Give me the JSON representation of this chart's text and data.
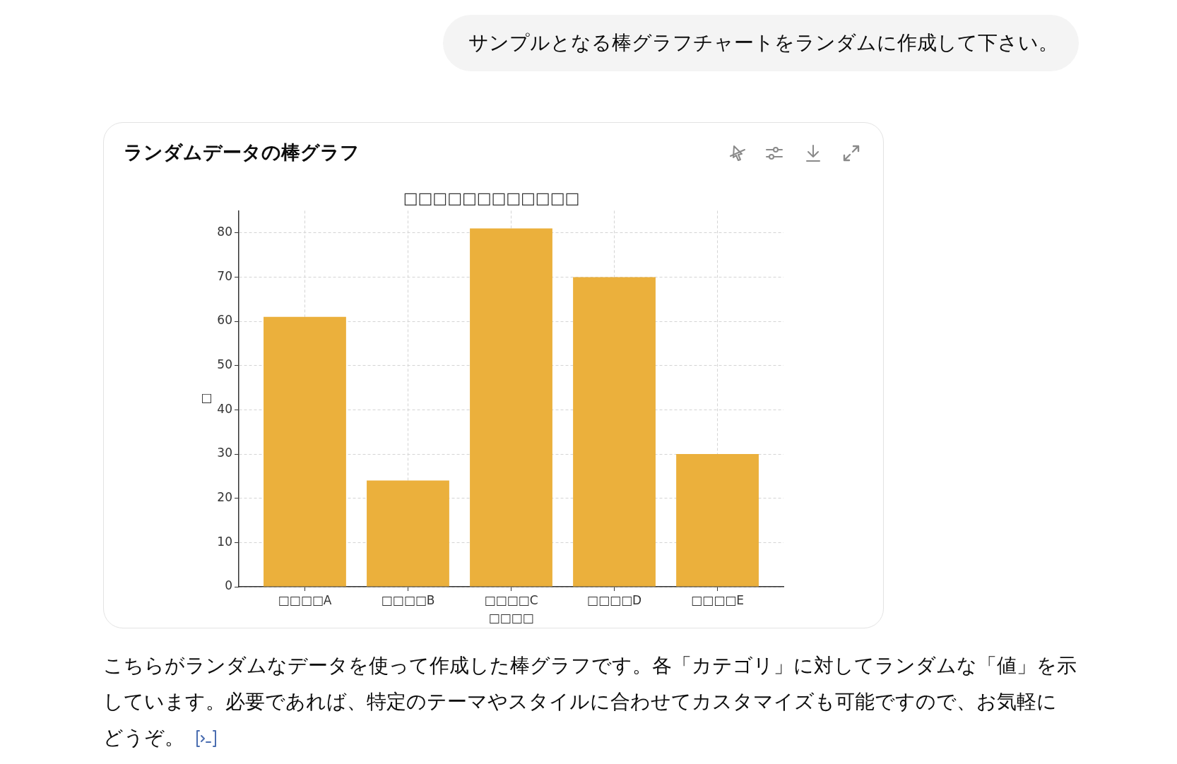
{
  "chart_data": {
    "type": "bar",
    "title": "ランダムデータの棒グラフ",
    "subtitle": "□□□□□□□□□□□□",
    "xlabel": "□□□□",
    "ylabel": "□",
    "categories": [
      "□□□□A",
      "□□□□B",
      "□□□□C",
      "□□□□D",
      "□□□□E"
    ],
    "values": [
      61,
      24,
      81,
      70,
      30
    ],
    "color": "#ebb03c",
    "ylim": [
      0,
      85
    ],
    "yticks": [
      0,
      10,
      20,
      30,
      40,
      50,
      60,
      70,
      80
    ],
    "grid": true,
    "annotations": [
      "サンプルとなる棒グラフチャートをランダムに作成して下さい。",
      "こちらがランダムなデータを使って作成した棒グラフです。各「カテゴリ」に対してランダムな「値」を示しています。必要であれば、特定のテーマやスタイルに合わせてカスタマイズも可能ですので、お気軽にどうぞ。"
    ]
  }
}
